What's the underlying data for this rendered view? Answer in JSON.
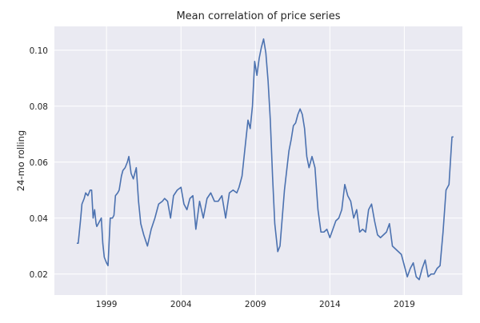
{
  "chart_data": {
    "type": "line",
    "title": "Mean correlation of price series",
    "xlabel": "",
    "ylabel": "24-mo rolling",
    "xlim": [
      1995.5,
      2022.9
    ],
    "ylim": [
      0.0125,
      0.1085
    ],
    "xticks": [
      1999,
      2004,
      2009,
      2014,
      2019
    ],
    "yticks": [
      0.02,
      0.04,
      0.06,
      0.08,
      0.1
    ],
    "ytick_labels": [
      "0.02",
      "0.04",
      "0.06",
      "0.08",
      "0.10"
    ],
    "grid": true,
    "legend": "none",
    "colors": {
      "background": "#eaeaf2",
      "grid": "#ffffff",
      "line": "#4c72b0"
    },
    "series": [
      {
        "x": [
          1997.0,
          1997.1,
          1997.25,
          1997.35,
          1997.5,
          1997.6,
          1997.75,
          1997.9,
          1998.0,
          1998.1,
          1998.2,
          1998.3,
          1998.35,
          1998.45,
          1998.55,
          1998.65,
          1998.75,
          1998.85,
          1999.0,
          1999.1,
          1999.25,
          1999.4,
          1999.5,
          1999.6,
          1999.75,
          1999.85,
          2000.0,
          2000.1,
          2000.25,
          2000.4,
          2000.5,
          2000.65,
          2000.8,
          2001.0,
          2001.15,
          2001.3,
          2001.5,
          2001.75,
          2002.0,
          2002.25,
          2002.5,
          2002.75,
          2002.9,
          2003.1,
          2003.3,
          2003.5,
          2003.75,
          2004.0,
          2004.2,
          2004.4,
          2004.6,
          2004.8,
          2005.0,
          2005.25,
          2005.5,
          2005.75,
          2006.0,
          2006.25,
          2006.5,
          2006.75,
          2007.0,
          2007.25,
          2007.5,
          2007.75,
          2007.9,
          2008.1,
          2008.3,
          2008.5,
          2008.65,
          2008.8,
          2008.95,
          2009.1,
          2009.25,
          2009.4,
          2009.55,
          2009.7,
          2009.85,
          2010.0,
          2010.15,
          2010.3,
          2010.5,
          2010.65,
          2010.8,
          2010.95,
          2011.1,
          2011.25,
          2011.4,
          2011.55,
          2011.7,
          2011.85,
          2012.0,
          2012.15,
          2012.3,
          2012.45,
          2012.6,
          2012.8,
          2013.0,
          2013.2,
          2013.4,
          2013.6,
          2013.8,
          2014.0,
          2014.2,
          2014.4,
          2014.6,
          2014.8,
          2015.0,
          2015.2,
          2015.4,
          2015.6,
          2015.8,
          2016.0,
          2016.2,
          2016.4,
          2016.6,
          2016.8,
          2017.0,
          2017.2,
          2017.4,
          2017.6,
          2017.8,
          2018.0,
          2018.2,
          2018.4,
          2018.6,
          2018.8,
          2019.0,
          2019.2,
          2019.4,
          2019.6,
          2019.8,
          2020.0,
          2020.2,
          2020.4,
          2020.6,
          2020.8,
          2021.0,
          2021.2,
          2021.4,
          2021.6,
          2021.8,
          2022.0,
          2022.2,
          2022.3
        ],
        "y": [
          0.031,
          0.031,
          0.039,
          0.045,
          0.047,
          0.049,
          0.048,
          0.05,
          0.05,
          0.04,
          0.043,
          0.038,
          0.037,
          0.038,
          0.039,
          0.04,
          0.031,
          0.026,
          0.024,
          0.023,
          0.04,
          0.04,
          0.041,
          0.048,
          0.049,
          0.05,
          0.055,
          0.057,
          0.058,
          0.06,
          0.062,
          0.056,
          0.054,
          0.058,
          0.046,
          0.038,
          0.034,
          0.03,
          0.036,
          0.04,
          0.045,
          0.046,
          0.047,
          0.046,
          0.04,
          0.048,
          0.05,
          0.051,
          0.045,
          0.043,
          0.047,
          0.048,
          0.036,
          0.046,
          0.04,
          0.047,
          0.049,
          0.046,
          0.046,
          0.048,
          0.04,
          0.049,
          0.05,
          0.049,
          0.051,
          0.055,
          0.065,
          0.075,
          0.072,
          0.08,
          0.096,
          0.091,
          0.097,
          0.101,
          0.104,
          0.099,
          0.089,
          0.075,
          0.055,
          0.038,
          0.028,
          0.03,
          0.04,
          0.05,
          0.057,
          0.064,
          0.068,
          0.073,
          0.074,
          0.077,
          0.079,
          0.077,
          0.072,
          0.062,
          0.058,
          0.062,
          0.058,
          0.043,
          0.035,
          0.035,
          0.036,
          0.033,
          0.036,
          0.039,
          0.04,
          0.043,
          0.052,
          0.048,
          0.046,
          0.04,
          0.043,
          0.035,
          0.036,
          0.035,
          0.043,
          0.045,
          0.039,
          0.034,
          0.033,
          0.034,
          0.035,
          0.038,
          0.03,
          0.029,
          0.028,
          0.027,
          0.023,
          0.019,
          0.022,
          0.024,
          0.019,
          0.018,
          0.022,
          0.025,
          0.019,
          0.02,
          0.02,
          0.022,
          0.023,
          0.035,
          0.05,
          0.052,
          0.069,
          0.069
        ]
      }
    ]
  }
}
